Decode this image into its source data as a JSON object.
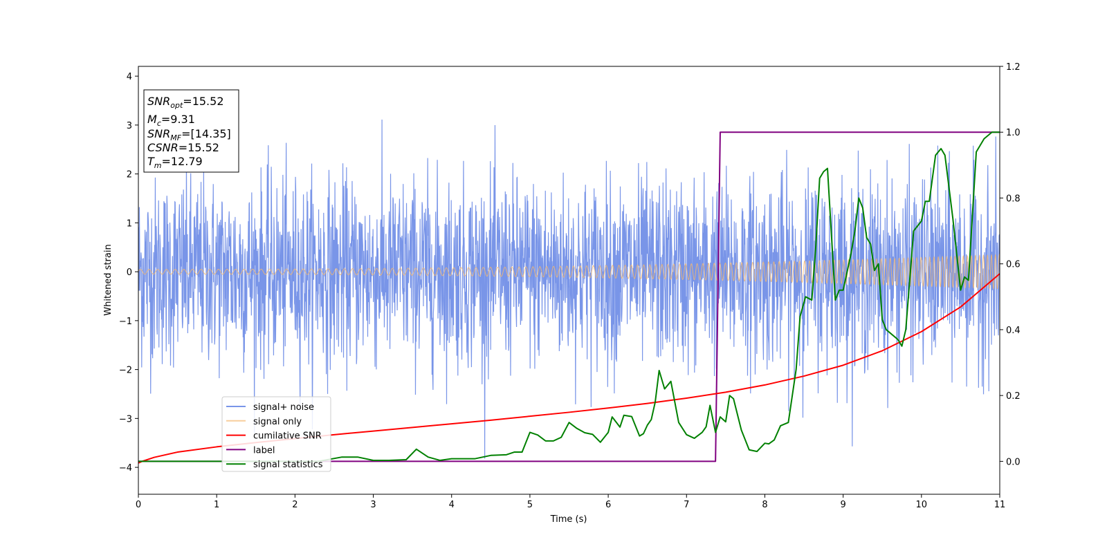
{
  "chart_data": {
    "type": "line",
    "title": "",
    "xlabel": "Time (s)",
    "ylabel": "Whitened strain",
    "xlim": [
      0,
      11
    ],
    "ylim_left": [
      -4.55,
      4.2
    ],
    "ylim_right": [
      -0.1,
      1.2
    ],
    "x_ticks": [
      0,
      1,
      2,
      3,
      4,
      5,
      6,
      7,
      8,
      9,
      10,
      11
    ],
    "x_tick_labels": [
      "0",
      "1",
      "2",
      "3",
      "4",
      "5",
      "6",
      "7",
      "8",
      "9",
      "10",
      "11"
    ],
    "y_left_ticks": [
      -4,
      -3,
      -2,
      -1,
      0,
      1,
      2,
      3,
      4
    ],
    "y_left_tick_labels": [
      "−4",
      "−3",
      "−2",
      "−1",
      "0",
      "1",
      "2",
      "3",
      "4"
    ],
    "y_right_ticks": [
      0.0,
      0.2,
      0.4,
      0.6,
      0.8,
      1.0,
      1.2
    ],
    "y_right_tick_labels": [
      "0.0",
      "0.2",
      "0.4",
      "0.6",
      "0.8",
      "1.0",
      "1.2"
    ],
    "grid": false,
    "legend_position": "lower-left",
    "series": [
      {
        "name": "signal+ noise",
        "axis": "left",
        "color": "#6a8ae6",
        "style": "noise",
        "approx_std": 0.95,
        "approx_range": [
          -4.15,
          3.82
        ]
      },
      {
        "name": "signal only",
        "axis": "left",
        "color": "#f5b870",
        "style": "chirp",
        "amplitude_start": 0.05,
        "amplitude_end": 0.35
      },
      {
        "name": "cumilative SNR",
        "axis": "right",
        "color": "#ff0000",
        "x": [
          0,
          0.05,
          0.2,
          0.5,
          1,
          1.5,
          2,
          2.5,
          3,
          3.5,
          4,
          4.5,
          5,
          5.5,
          6,
          6.5,
          7,
          7.5,
          8,
          8.5,
          9,
          9.5,
          10,
          10.5,
          11
        ],
        "y": [
          -0.005,
          0.0,
          0.012,
          0.028,
          0.044,
          0.057,
          0.069,
          0.081,
          0.092,
          0.103,
          0.114,
          0.125,
          0.137,
          0.149,
          0.162,
          0.176,
          0.192,
          0.21,
          0.232,
          0.259,
          0.292,
          0.336,
          0.394,
          0.469,
          0.57
        ]
      },
      {
        "name": "label",
        "axis": "right",
        "color": "#800080",
        "x": [
          0,
          7.37,
          7.43,
          11
        ],
        "y": [
          0,
          0,
          1,
          1
        ]
      },
      {
        "name": "signal statistics",
        "axis": "right",
        "color": "#008000",
        "x": [
          0,
          0.5,
          1,
          1.5,
          2,
          2.3,
          2.6,
          2.8,
          3,
          3.2,
          3.42,
          3.55,
          3.7,
          3.85,
          4,
          4.3,
          4.5,
          4.7,
          4.8,
          4.9,
          5.0,
          5.1,
          5.2,
          5.3,
          5.4,
          5.5,
          5.6,
          5.7,
          5.8,
          5.9,
          6.0,
          6.05,
          6.15,
          6.2,
          6.3,
          6.4,
          6.45,
          6.5,
          6.55,
          6.6,
          6.65,
          6.72,
          6.8,
          6.9,
          7.0,
          7.1,
          7.2,
          7.25,
          7.3,
          7.37,
          7.43,
          7.5,
          7.55,
          7.6,
          7.7,
          7.8,
          7.9,
          8.0,
          8.05,
          8.12,
          8.2,
          8.3,
          8.4,
          8.45,
          8.52,
          8.6,
          8.65,
          8.7,
          8.75,
          8.8,
          8.9,
          8.95,
          9.0,
          9.1,
          9.15,
          9.2,
          9.25,
          9.3,
          9.35,
          9.4,
          9.45,
          9.5,
          9.55,
          9.6,
          9.7,
          9.75,
          9.8,
          9.9,
          10.0,
          10.05,
          10.1,
          10.18,
          10.25,
          10.3,
          10.4,
          10.5,
          10.55,
          10.6,
          10.7,
          10.8,
          10.9,
          11.0
        ],
        "y": [
          0.0,
          0.0,
          0.0,
          0.0,
          0.0,
          0.0,
          0.013,
          0.013,
          0.003,
          0.003,
          0.005,
          0.037,
          0.013,
          0.003,
          0.008,
          0.008,
          0.018,
          0.02,
          0.028,
          0.028,
          0.088,
          0.08,
          0.062,
          0.062,
          0.073,
          0.118,
          0.1,
          0.087,
          0.082,
          0.058,
          0.088,
          0.135,
          0.104,
          0.14,
          0.136,
          0.077,
          0.084,
          0.11,
          0.127,
          0.18,
          0.276,
          0.22,
          0.243,
          0.118,
          0.081,
          0.07,
          0.088,
          0.105,
          0.17,
          0.088,
          0.135,
          0.12,
          0.2,
          0.19,
          0.095,
          0.035,
          0.03,
          0.055,
          0.053,
          0.065,
          0.108,
          0.118,
          0.28,
          0.44,
          0.5,
          0.49,
          0.65,
          0.86,
          0.88,
          0.89,
          0.49,
          0.52,
          0.52,
          0.63,
          0.7,
          0.8,
          0.77,
          0.68,
          0.66,
          0.58,
          0.6,
          0.43,
          0.4,
          0.39,
          0.37,
          0.35,
          0.4,
          0.7,
          0.73,
          0.79,
          0.79,
          0.93,
          0.95,
          0.93,
          0.74,
          0.52,
          0.56,
          0.55,
          0.94,
          0.98,
          1.0,
          1.0
        ]
      }
    ],
    "annotations": {
      "snr_opt": {
        "label": "SNR",
        "sub": "opt",
        "value": "=15.52"
      },
      "mc": {
        "label": "M",
        "sub": "c",
        "value": "=9.31"
      },
      "snr_mf": {
        "label": "SNR",
        "sub": "MF",
        "value": "=[14.35]"
      },
      "csnr": {
        "label": "CSNR",
        "value": "=15.52"
      },
      "tm": {
        "label": "T",
        "sub": "m",
        "value": "=12.79"
      }
    }
  }
}
